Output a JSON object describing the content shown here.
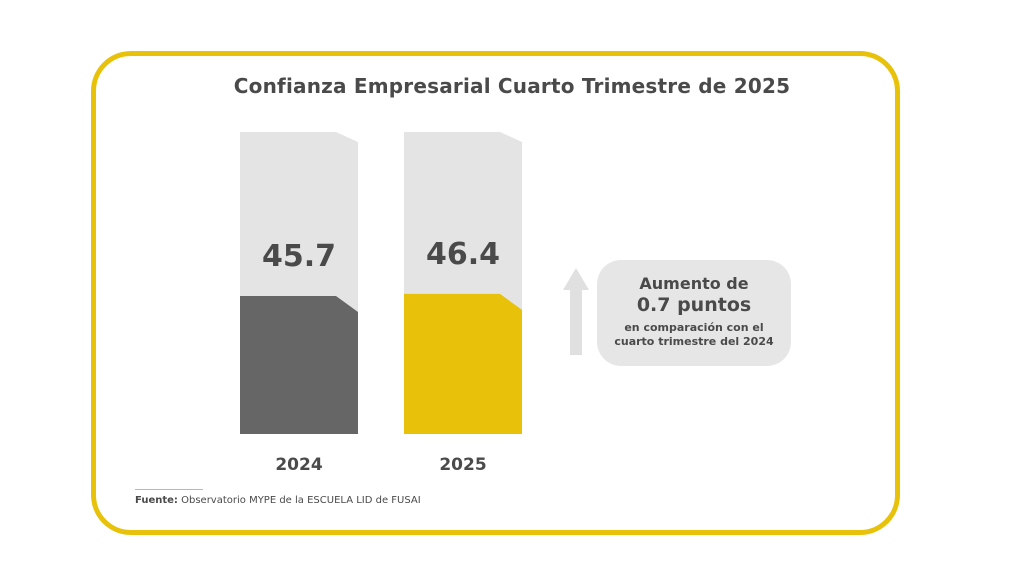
{
  "title": "Confianza Empresarial  Cuarto Trimestre de 2025",
  "chart_data": {
    "type": "bar",
    "categories": [
      "2024",
      "2025"
    ],
    "values": [
      45.7,
      46.4
    ],
    "value_labels": [
      "45.7",
      "46.4"
    ],
    "ylim": [
      0,
      100
    ],
    "colors": {
      "2024": "#666666",
      "2025": "#e8c20a",
      "background": "#e4e4e4"
    }
  },
  "callout": {
    "line1": "Aumento de",
    "line2": "0.7 puntos",
    "line3": "en comparación con el",
    "line4": "cuarto trimestre del 2024",
    "icon": "arrow-up-icon"
  },
  "source": {
    "label": "Fuente:",
    "text": "Observatorio MYPE de la ESCUELA LID de FUSAI"
  },
  "colors": {
    "accent": "#e8c20a",
    "text": "#4a4a4a",
    "arrow": "#e0e0e0"
  }
}
